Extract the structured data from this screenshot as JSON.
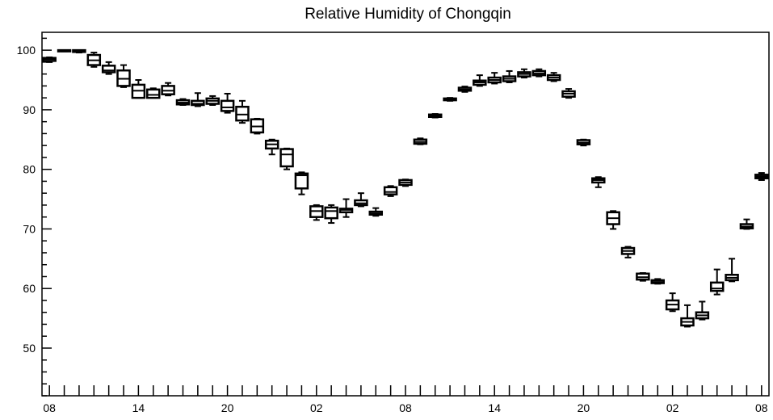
{
  "chart_data": {
    "type": "box",
    "title": "Relative Humidity of Chongqin",
    "xlabel": "",
    "ylabel": "",
    "ylim": [
      42,
      103
    ],
    "yticks": [
      50,
      60,
      70,
      80,
      90,
      100
    ],
    "x_tick_labels": [
      {
        "pos": 0,
        "label": "08"
      },
      {
        "pos": 6,
        "label": "14"
      },
      {
        "pos": 12,
        "label": "20"
      },
      {
        "pos": 18,
        "label": "02"
      },
      {
        "pos": 24,
        "label": "08"
      },
      {
        "pos": 30,
        "label": "14"
      },
      {
        "pos": 36,
        "label": "20"
      },
      {
        "pos": 42,
        "label": "02"
      },
      {
        "pos": 48,
        "label": "08"
      }
    ],
    "xlim": [
      -0.5,
      48.5
    ],
    "grid": false,
    "boxes": [
      {
        "x": 0,
        "min": 98.0,
        "q1": 98.2,
        "median": 98.5,
        "q3": 98.7,
        "max": 98.8
      },
      {
        "x": 1,
        "min": 99.8,
        "q1": 99.9,
        "median": 100.0,
        "q3": 100.0,
        "max": 100.0
      },
      {
        "x": 2,
        "min": 99.6,
        "q1": 99.7,
        "median": 99.8,
        "q3": 100.0,
        "max": 100.0
      },
      {
        "x": 3,
        "min": 97.2,
        "q1": 97.5,
        "median": 98.3,
        "q3": 99.2,
        "max": 99.6
      },
      {
        "x": 4,
        "min": 96.0,
        "q1": 96.3,
        "median": 96.6,
        "q3": 97.4,
        "max": 98.0
      },
      {
        "x": 5,
        "min": 93.8,
        "q1": 94.0,
        "median": 95.2,
        "q3": 96.6,
        "max": 97.5
      },
      {
        "x": 6,
        "min": 92.0,
        "q1": 92.0,
        "median": 93.2,
        "q3": 94.2,
        "max": 95.0
      },
      {
        "x": 7,
        "min": 92.0,
        "q1": 92.0,
        "median": 92.5,
        "q3": 93.4,
        "max": 93.6
      },
      {
        "x": 8,
        "min": 92.4,
        "q1": 92.6,
        "median": 93.2,
        "q3": 94.0,
        "max": 94.5
      },
      {
        "x": 9,
        "min": 90.8,
        "q1": 90.9,
        "median": 91.2,
        "q3": 91.6,
        "max": 91.8
      },
      {
        "x": 10,
        "min": 90.6,
        "q1": 90.8,
        "median": 91.0,
        "q3": 91.5,
        "max": 92.8
      },
      {
        "x": 11,
        "min": 90.8,
        "q1": 91.0,
        "median": 91.5,
        "q3": 91.9,
        "max": 92.3
      },
      {
        "x": 12,
        "min": 89.5,
        "q1": 89.8,
        "median": 90.4,
        "q3": 91.5,
        "max": 92.7
      },
      {
        "x": 13,
        "min": 87.8,
        "q1": 88.2,
        "median": 89.2,
        "q3": 90.5,
        "max": 91.5
      },
      {
        "x": 14,
        "min": 86.0,
        "q1": 86.2,
        "median": 87.2,
        "q3": 88.4,
        "max": 88.5
      },
      {
        "x": 15,
        "min": 82.5,
        "q1": 83.5,
        "median": 84.2,
        "q3": 84.8,
        "max": 85.0
      },
      {
        "x": 16,
        "min": 80.0,
        "q1": 80.5,
        "median": 82.5,
        "q3": 83.4,
        "max": 83.5
      },
      {
        "x": 17,
        "min": 75.8,
        "q1": 76.8,
        "median": 79.0,
        "q3": 79.3,
        "max": 79.5
      },
      {
        "x": 18,
        "min": 71.5,
        "q1": 72.0,
        "median": 73.0,
        "q3": 73.8,
        "max": 74.0
      },
      {
        "x": 19,
        "min": 71.0,
        "q1": 71.8,
        "median": 73.0,
        "q3": 73.6,
        "max": 74.0
      },
      {
        "x": 20,
        "min": 72.0,
        "q1": 72.8,
        "median": 73.2,
        "q3": 73.4,
        "max": 75.0
      },
      {
        "x": 21,
        "min": 73.8,
        "q1": 74.0,
        "median": 74.3,
        "q3": 74.8,
        "max": 76.0
      },
      {
        "x": 22,
        "min": 72.2,
        "q1": 72.4,
        "median": 72.6,
        "q3": 72.9,
        "max": 73.5
      },
      {
        "x": 23,
        "min": 75.5,
        "q1": 75.8,
        "median": 76.2,
        "q3": 77.0,
        "max": 77.2
      },
      {
        "x": 24,
        "min": 77.2,
        "q1": 77.4,
        "median": 77.8,
        "q3": 78.2,
        "max": 78.3
      },
      {
        "x": 25,
        "min": 84.2,
        "q1": 84.3,
        "median": 84.6,
        "q3": 85.0,
        "max": 85.2
      },
      {
        "x": 26,
        "min": 88.7,
        "q1": 88.8,
        "median": 89.0,
        "q3": 89.2,
        "max": 89.3
      },
      {
        "x": 27,
        "min": 91.5,
        "q1": 91.6,
        "median": 91.8,
        "q3": 91.9,
        "max": 92.0
      },
      {
        "x": 28,
        "min": 93.0,
        "q1": 93.2,
        "median": 93.4,
        "q3": 93.7,
        "max": 93.9
      },
      {
        "x": 29,
        "min": 94.0,
        "q1": 94.2,
        "median": 94.6,
        "q3": 94.9,
        "max": 95.8
      },
      {
        "x": 30,
        "min": 94.4,
        "q1": 94.6,
        "median": 95.0,
        "q3": 95.4,
        "max": 96.2
      },
      {
        "x": 31,
        "min": 94.6,
        "q1": 94.8,
        "median": 95.2,
        "q3": 95.6,
        "max": 96.5
      },
      {
        "x": 32,
        "min": 95.4,
        "q1": 95.6,
        "median": 96.0,
        "q3": 96.3,
        "max": 96.8
      },
      {
        "x": 33,
        "min": 95.6,
        "q1": 95.8,
        "median": 96.1,
        "q3": 96.5,
        "max": 96.8
      },
      {
        "x": 34,
        "min": 94.8,
        "q1": 95.0,
        "median": 95.4,
        "q3": 95.8,
        "max": 96.2
      },
      {
        "x": 35,
        "min": 92.0,
        "q1": 92.2,
        "median": 92.7,
        "q3": 93.1,
        "max": 93.5
      },
      {
        "x": 36,
        "min": 84.0,
        "q1": 84.2,
        "median": 84.5,
        "q3": 84.9,
        "max": 85.0
      },
      {
        "x": 37,
        "min": 77.0,
        "q1": 77.8,
        "median": 78.2,
        "q3": 78.5,
        "max": 78.7
      },
      {
        "x": 38,
        "min": 70.0,
        "q1": 70.8,
        "median": 71.8,
        "q3": 72.8,
        "max": 73.0
      },
      {
        "x": 39,
        "min": 65.2,
        "q1": 65.8,
        "median": 66.3,
        "q3": 66.8,
        "max": 67.0
      },
      {
        "x": 40,
        "min": 61.3,
        "q1": 61.5,
        "median": 61.9,
        "q3": 62.5,
        "max": 62.6
      },
      {
        "x": 41,
        "min": 60.8,
        "q1": 60.9,
        "median": 61.1,
        "q3": 61.4,
        "max": 61.6
      },
      {
        "x": 42,
        "min": 56.2,
        "q1": 56.5,
        "median": 57.3,
        "q3": 58.0,
        "max": 59.2
      },
      {
        "x": 43,
        "min": 53.6,
        "q1": 53.8,
        "median": 54.4,
        "q3": 55.0,
        "max": 57.2
      },
      {
        "x": 44,
        "min": 54.8,
        "q1": 55.0,
        "median": 55.5,
        "q3": 56.0,
        "max": 57.8
      },
      {
        "x": 45,
        "min": 59.0,
        "q1": 59.6,
        "median": 60.0,
        "q3": 61.0,
        "max": 63.2
      },
      {
        "x": 46,
        "min": 61.2,
        "q1": 61.4,
        "median": 61.8,
        "q3": 62.3,
        "max": 65.0
      },
      {
        "x": 47,
        "min": 70.0,
        "q1": 70.1,
        "median": 70.4,
        "q3": 70.8,
        "max": 71.6
      },
      {
        "x": 48,
        "min": 78.2,
        "q1": 78.5,
        "median": 78.8,
        "q3": 79.1,
        "max": 79.4
      }
    ]
  }
}
